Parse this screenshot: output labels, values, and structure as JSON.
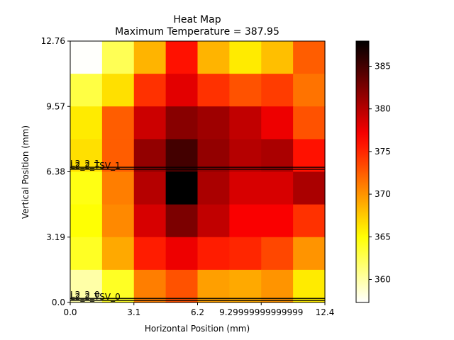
{
  "chart_data": {
    "type": "heatmap",
    "title": "Heat Map",
    "subtitle": "Maximum Temperature = 387.95",
    "xlabel": "Horizontal Position (mm)",
    "ylabel": "Vertical Position (mm)",
    "xlim": [
      0.0,
      12.4
    ],
    "ylim": [
      0.0,
      12.76
    ],
    "x_ticks": [
      0.0,
      3.1,
      6.2,
      9.3,
      12.4
    ],
    "x_tick_labels": [
      "0.0",
      "3.1",
      "6.2",
      "9.29999999999999",
      "12.4"
    ],
    "y_ticks": [
      0.0,
      3.19,
      6.38,
      9.57,
      12.76
    ],
    "y_tick_labels": [
      "0.0",
      "3.19",
      "6.38",
      "9.57",
      "12.76"
    ],
    "grid": false,
    "colormap": "hot_r",
    "colorbar": {
      "range": [
        357.3,
        387.95
      ],
      "ticks": [
        360,
        365,
        370,
        375,
        380,
        385
      ],
      "tick_labels": [
        "360",
        "365",
        "370",
        "375",
        "380",
        "385"
      ]
    },
    "grid_size": {
      "cols": 8,
      "rows": 8
    },
    "values_top_to_bottom": [
      [
        357.4,
        362.5,
        368.5,
        376.0,
        368.5,
        366.0,
        368.0,
        372.5
      ],
      [
        363.0,
        366.5,
        374.5,
        378.0,
        374.5,
        373.0,
        374.0,
        371.5
      ],
      [
        366.0,
        372.5,
        379.0,
        382.0,
        381.0,
        379.5,
        377.5,
        373.0
      ],
      [
        366.5,
        372.5,
        381.5,
        385.0,
        381.5,
        380.0,
        380.5,
        376.0
      ],
      [
        364.5,
        371.0,
        380.0,
        387.95,
        380.5,
        378.5,
        378.5,
        380.5
      ],
      [
        365.0,
        370.5,
        378.5,
        382.5,
        379.5,
        377.0,
        377.0,
        374.5
      ],
      [
        364.0,
        369.0,
        375.5,
        377.5,
        375.5,
        375.0,
        373.5,
        370.0
      ],
      [
        360.0,
        364.0,
        371.0,
        373.0,
        369.5,
        369.0,
        370.0,
        366.0
      ]
    ],
    "annotations": [
      {
        "label": "L2_2_1",
        "y": 6.6
      },
      {
        "label": "L2_2_TSV_1",
        "y": 6.5
      },
      {
        "label": "L2_2_0",
        "y": 0.2
      },
      {
        "label": "L2_2_TSV_0",
        "y": 0.1
      }
    ]
  }
}
